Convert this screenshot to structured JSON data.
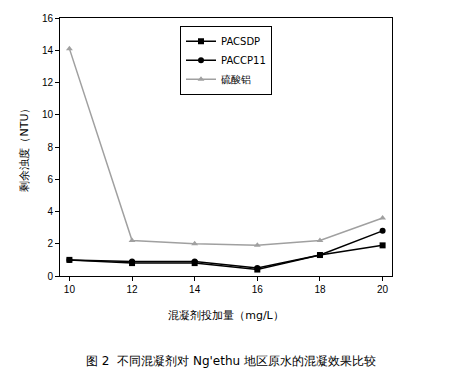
{
  "chart_data": {
    "type": "line",
    "title": "图 2  不同混凝剂对 Ng'ethu 地区原水的混凝效果比较",
    "x_label": "混凝剂投加量（mg/L）",
    "y_label": "剩余浊度（NTU）",
    "x": [
      10,
      12,
      14,
      16,
      18,
      20
    ],
    "series": [
      {
        "name": "PACSDP",
        "color": "#000000",
        "marker": "square",
        "values": [
          1.0,
          0.8,
          0.8,
          0.4,
          1.3,
          1.9
        ]
      },
      {
        "name": "PACCP11",
        "color": "#000000",
        "marker": "circle",
        "values": [
          1.0,
          0.9,
          0.9,
          0.5,
          1.3,
          2.8
        ]
      },
      {
        "name": "硫酸铝",
        "color": "#a0a0a0",
        "marker": "triangle",
        "values": [
          14.1,
          2.2,
          2.0,
          1.9,
          2.2,
          3.6
        ]
      }
    ],
    "xlim": [
      9.7,
      20.3
    ],
    "xticks": [
      10,
      12,
      14,
      16,
      18,
      20
    ],
    "ylim": [
      0,
      16
    ],
    "yticks": [
      0,
      2,
      4,
      6,
      8,
      10,
      12,
      14,
      16
    ],
    "grid": false,
    "legend": "top"
  }
}
